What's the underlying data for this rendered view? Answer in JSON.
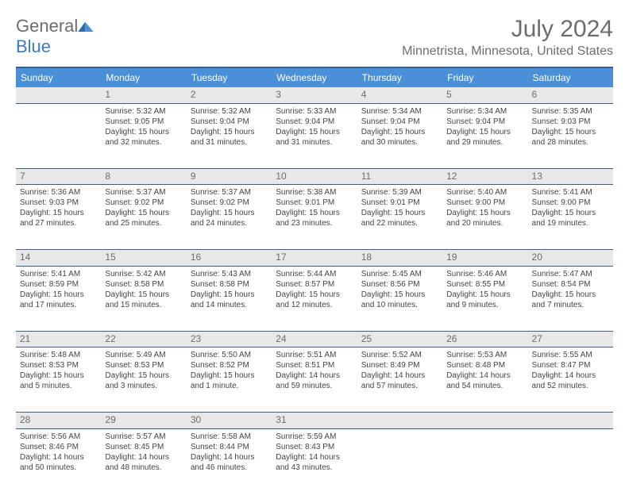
{
  "brand": {
    "name1": "General",
    "name2": "Blue"
  },
  "title": "July 2024",
  "location": "Minnetrista, Minnesota, United States",
  "colors": {
    "header_bg": "#4a90d9",
    "header_text": "#ffffff",
    "rule": "#415f7d",
    "daynum_bg": "#e8e8e8",
    "body_text": "#444444",
    "muted": "#6d6d6d"
  },
  "weekdays": [
    "Sunday",
    "Monday",
    "Tuesday",
    "Wednesday",
    "Thursday",
    "Friday",
    "Saturday"
  ],
  "weeks": [
    {
      "nums": [
        "",
        "1",
        "2",
        "3",
        "4",
        "5",
        "6"
      ],
      "cells": [
        null,
        {
          "sunrise": "Sunrise: 5:32 AM",
          "sunset": "Sunset: 9:05 PM",
          "daylight": "Daylight: 15 hours and 32 minutes."
        },
        {
          "sunrise": "Sunrise: 5:32 AM",
          "sunset": "Sunset: 9:04 PM",
          "daylight": "Daylight: 15 hours and 31 minutes."
        },
        {
          "sunrise": "Sunrise: 5:33 AM",
          "sunset": "Sunset: 9:04 PM",
          "daylight": "Daylight: 15 hours and 31 minutes."
        },
        {
          "sunrise": "Sunrise: 5:34 AM",
          "sunset": "Sunset: 9:04 PM",
          "daylight": "Daylight: 15 hours and 30 minutes."
        },
        {
          "sunrise": "Sunrise: 5:34 AM",
          "sunset": "Sunset: 9:04 PM",
          "daylight": "Daylight: 15 hours and 29 minutes."
        },
        {
          "sunrise": "Sunrise: 5:35 AM",
          "sunset": "Sunset: 9:03 PM",
          "daylight": "Daylight: 15 hours and 28 minutes."
        }
      ]
    },
    {
      "nums": [
        "7",
        "8",
        "9",
        "10",
        "11",
        "12",
        "13"
      ],
      "cells": [
        {
          "sunrise": "Sunrise: 5:36 AM",
          "sunset": "Sunset: 9:03 PM",
          "daylight": "Daylight: 15 hours and 27 minutes."
        },
        {
          "sunrise": "Sunrise: 5:37 AM",
          "sunset": "Sunset: 9:02 PM",
          "daylight": "Daylight: 15 hours and 25 minutes."
        },
        {
          "sunrise": "Sunrise: 5:37 AM",
          "sunset": "Sunset: 9:02 PM",
          "daylight": "Daylight: 15 hours and 24 minutes."
        },
        {
          "sunrise": "Sunrise: 5:38 AM",
          "sunset": "Sunset: 9:01 PM",
          "daylight": "Daylight: 15 hours and 23 minutes."
        },
        {
          "sunrise": "Sunrise: 5:39 AM",
          "sunset": "Sunset: 9:01 PM",
          "daylight": "Daylight: 15 hours and 22 minutes."
        },
        {
          "sunrise": "Sunrise: 5:40 AM",
          "sunset": "Sunset: 9:00 PM",
          "daylight": "Daylight: 15 hours and 20 minutes."
        },
        {
          "sunrise": "Sunrise: 5:41 AM",
          "sunset": "Sunset: 9:00 PM",
          "daylight": "Daylight: 15 hours and 19 minutes."
        }
      ]
    },
    {
      "nums": [
        "14",
        "15",
        "16",
        "17",
        "18",
        "19",
        "20"
      ],
      "cells": [
        {
          "sunrise": "Sunrise: 5:41 AM",
          "sunset": "Sunset: 8:59 PM",
          "daylight": "Daylight: 15 hours and 17 minutes."
        },
        {
          "sunrise": "Sunrise: 5:42 AM",
          "sunset": "Sunset: 8:58 PM",
          "daylight": "Daylight: 15 hours and 15 minutes."
        },
        {
          "sunrise": "Sunrise: 5:43 AM",
          "sunset": "Sunset: 8:58 PM",
          "daylight": "Daylight: 15 hours and 14 minutes."
        },
        {
          "sunrise": "Sunrise: 5:44 AM",
          "sunset": "Sunset: 8:57 PM",
          "daylight": "Daylight: 15 hours and 12 minutes."
        },
        {
          "sunrise": "Sunrise: 5:45 AM",
          "sunset": "Sunset: 8:56 PM",
          "daylight": "Daylight: 15 hours and 10 minutes."
        },
        {
          "sunrise": "Sunrise: 5:46 AM",
          "sunset": "Sunset: 8:55 PM",
          "daylight": "Daylight: 15 hours and 9 minutes."
        },
        {
          "sunrise": "Sunrise: 5:47 AM",
          "sunset": "Sunset: 8:54 PM",
          "daylight": "Daylight: 15 hours and 7 minutes."
        }
      ]
    },
    {
      "nums": [
        "21",
        "22",
        "23",
        "24",
        "25",
        "26",
        "27"
      ],
      "cells": [
        {
          "sunrise": "Sunrise: 5:48 AM",
          "sunset": "Sunset: 8:53 PM",
          "daylight": "Daylight: 15 hours and 5 minutes."
        },
        {
          "sunrise": "Sunrise: 5:49 AM",
          "sunset": "Sunset: 8:53 PM",
          "daylight": "Daylight: 15 hours and 3 minutes."
        },
        {
          "sunrise": "Sunrise: 5:50 AM",
          "sunset": "Sunset: 8:52 PM",
          "daylight": "Daylight: 15 hours and 1 minute."
        },
        {
          "sunrise": "Sunrise: 5:51 AM",
          "sunset": "Sunset: 8:51 PM",
          "daylight": "Daylight: 14 hours and 59 minutes."
        },
        {
          "sunrise": "Sunrise: 5:52 AM",
          "sunset": "Sunset: 8:49 PM",
          "daylight": "Daylight: 14 hours and 57 minutes."
        },
        {
          "sunrise": "Sunrise: 5:53 AM",
          "sunset": "Sunset: 8:48 PM",
          "daylight": "Daylight: 14 hours and 54 minutes."
        },
        {
          "sunrise": "Sunrise: 5:55 AM",
          "sunset": "Sunset: 8:47 PM",
          "daylight": "Daylight: 14 hours and 52 minutes."
        }
      ]
    },
    {
      "nums": [
        "28",
        "29",
        "30",
        "31",
        "",
        "",
        ""
      ],
      "cells": [
        {
          "sunrise": "Sunrise: 5:56 AM",
          "sunset": "Sunset: 8:46 PM",
          "daylight": "Daylight: 14 hours and 50 minutes."
        },
        {
          "sunrise": "Sunrise: 5:57 AM",
          "sunset": "Sunset: 8:45 PM",
          "daylight": "Daylight: 14 hours and 48 minutes."
        },
        {
          "sunrise": "Sunrise: 5:58 AM",
          "sunset": "Sunset: 8:44 PM",
          "daylight": "Daylight: 14 hours and 46 minutes."
        },
        {
          "sunrise": "Sunrise: 5:59 AM",
          "sunset": "Sunset: 8:43 PM",
          "daylight": "Daylight: 14 hours and 43 minutes."
        },
        null,
        null,
        null
      ]
    }
  ]
}
